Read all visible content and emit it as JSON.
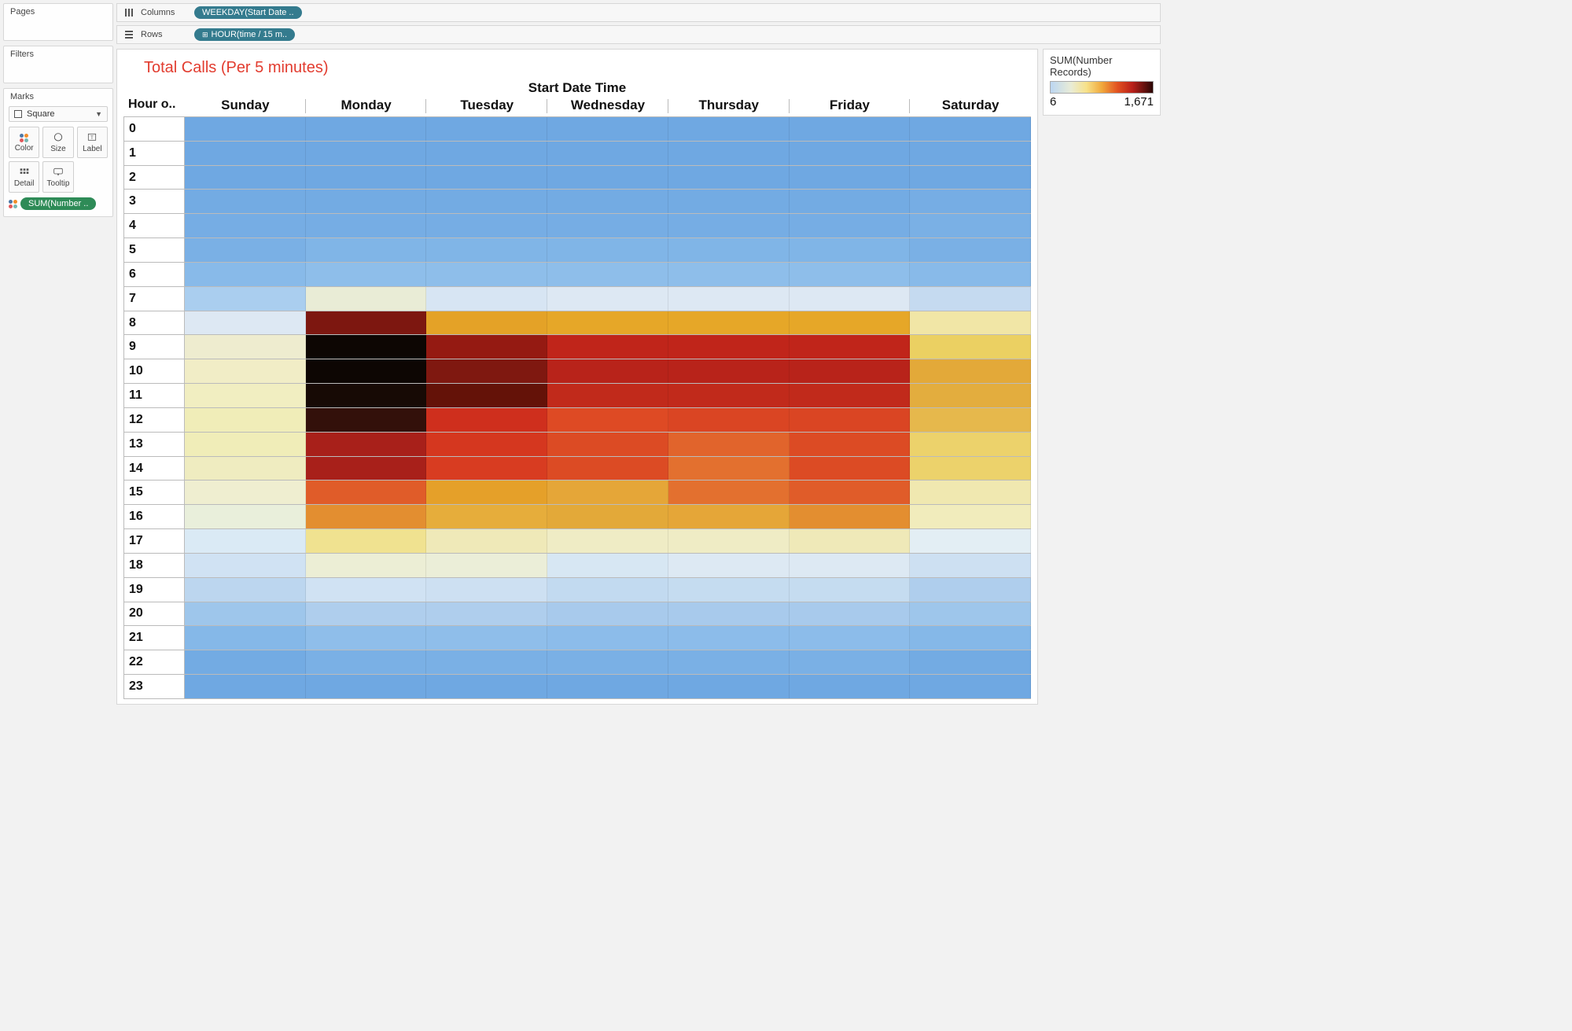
{
  "shelves": {
    "pages_label": "Pages",
    "filters_label": "Filters",
    "marks_label": "Marks",
    "columns_label": "Columns",
    "rows_label": "Rows",
    "columns_pill": "WEEKDAY(Start Date ..",
    "rows_pill": "HOUR(time / 15 m..",
    "mark_type": "Square",
    "mark_buttons": {
      "color": "Color",
      "size": "Size",
      "label": "Label",
      "detail": "Detail",
      "tooltip": "Tooltip"
    },
    "marks_pill": "SUM(Number .."
  },
  "legend": {
    "title": "SUM(Number Records)",
    "min": "6",
    "max": "1,671"
  },
  "chart": {
    "type": "heatmap",
    "title": "Total Calls (Per 5 minutes)",
    "super_header": "Start Date Time",
    "corner_label": "Hour o..",
    "days": [
      "Sunday",
      "Monday",
      "Tuesday",
      "Wednesday",
      "Thursday",
      "Friday",
      "Saturday"
    ],
    "hours": [
      "0",
      "1",
      "2",
      "3",
      "4",
      "5",
      "6",
      "7",
      "8",
      "9",
      "10",
      "11",
      "12",
      "13",
      "14",
      "15",
      "16",
      "17",
      "18",
      "19",
      "20",
      "21",
      "22",
      "23"
    ],
    "cell_colors": [
      [
        "#6fa8e2",
        "#6fa8e2",
        "#6fa8e2",
        "#6fa8e2",
        "#6fa8e2",
        "#6fa8e2",
        "#6fa8e2"
      ],
      [
        "#6fa8e2",
        "#6fa8e2",
        "#6fa8e2",
        "#6fa8e2",
        "#6fa8e2",
        "#6fa8e2",
        "#6fa8e2"
      ],
      [
        "#6fa8e2",
        "#6fa8e2",
        "#6fa8e2",
        "#6fa8e2",
        "#6fa8e2",
        "#6fa8e2",
        "#6fa8e2"
      ],
      [
        "#73abe3",
        "#73abe3",
        "#73abe3",
        "#73abe3",
        "#73abe3",
        "#73abe3",
        "#76ade4"
      ],
      [
        "#76ade4",
        "#76ade4",
        "#76ade4",
        "#76ade4",
        "#76ade4",
        "#76ade4",
        "#7ab0e5"
      ],
      [
        "#7ab0e5",
        "#80b5e7",
        "#80b5e7",
        "#80b5e7",
        "#80b5e7",
        "#80b5e7",
        "#7ab0e5"
      ],
      [
        "#88bae9",
        "#8ebeeA",
        "#8ebeeA",
        "#8ebeeA",
        "#8ebeeA",
        "#8ebeeA",
        "#88bae9"
      ],
      [
        "#aacee f",
        "#e9ecd6",
        "#d7e5f3",
        "#dde8f3",
        "#dde8f3",
        "#dde8f3",
        "#c5daf0"
      ],
      [
        "#dde8f3",
        "#7d1710",
        "#e4a227",
        "#e6a728",
        "#e6a728",
        "#e6a728",
        "#f1e6a6"
      ],
      [
        "#eeeccf",
        "#0d0603",
        "#951a12",
        "#c0251a",
        "#c0251a",
        "#c0251a",
        "#ebd062"
      ],
      [
        "#f1edc6",
        "#0d0603",
        "#7f1810",
        "#b8231a",
        "#b8231a",
        "#b8231a",
        "#e3a939"
      ],
      [
        "#f1eec1",
        "#170a05",
        "#641208",
        "#c12a1b",
        "#c12a1b",
        "#c12a1b",
        "#e3ad3e"
      ],
      [
        "#f0edb8",
        "#33100a",
        "#cf2f1d",
        "#de4a24",
        "#da4523",
        "#da4523",
        "#e6b84c"
      ],
      [
        "#f0edb8",
        "#a8201a",
        "#d5371f",
        "#dc4b24",
        "#e1642c",
        "#dc4b24",
        "#ecd26b"
      ],
      [
        "#efecc0",
        "#a8201a",
        "#d83c21",
        "#dc4b24",
        "#e3702f",
        "#dc4b24",
        "#ecd26b"
      ],
      [
        "#efeed0",
        "#e05c29",
        "#e5a029",
        "#e5a638",
        "#e3702f",
        "#e05c29",
        "#f0e8b0"
      ],
      [
        "#e9efdb",
        "#e38e30",
        "#e6ad3b",
        "#e3a939",
        "#e5a638",
        "#e38e30",
        "#f1ecbc"
      ],
      [
        "#daeaf5",
        "#f0e290",
        "#efe9b8",
        "#efecc5",
        "#efecc5",
        "#efe9b8",
        "#e3eef4"
      ],
      [
        "#d0e2f3",
        "#eceed5",
        "#ebeed8",
        "#d7e7f3",
        "#dde9f3",
        "#dde9f3",
        "#cde0f2"
      ],
      [
        "#bcd6ef",
        "#d0e2f3",
        "#cde0f2",
        "#c2daf0",
        "#c5dcf0",
        "#c5dcf0",
        "#afceed"
      ],
      [
        "#9ec6eb",
        "#afceed",
        "#afceed",
        "#a8caec",
        "#a8caec",
        "#a8caec",
        "#9ec6eb"
      ],
      [
        "#85b8e8",
        "#8fbeea",
        "#8fbeea",
        "#8cbcea",
        "#8cbcea",
        "#8cbcea",
        "#85b8e8"
      ],
      [
        "#73abe3",
        "#7ab0e5",
        "#7ab0e5",
        "#7ab0e5",
        "#7ab0e5",
        "#7ab0e5",
        "#73abe3"
      ],
      [
        "#6fa8e2",
        "#6fa8e2",
        "#6fa8e2",
        "#6fa8e2",
        "#6fa8e2",
        "#6fa8e2",
        "#6fa8e2"
      ]
    ],
    "row_border_color": "#b8b8b8",
    "cell_border_color": "rgba(0,0,0,0.08)",
    "background_color": "#ffffff",
    "title_color": "#e23c2f",
    "header_font_size": 17,
    "row_label_font_size": 16
  }
}
